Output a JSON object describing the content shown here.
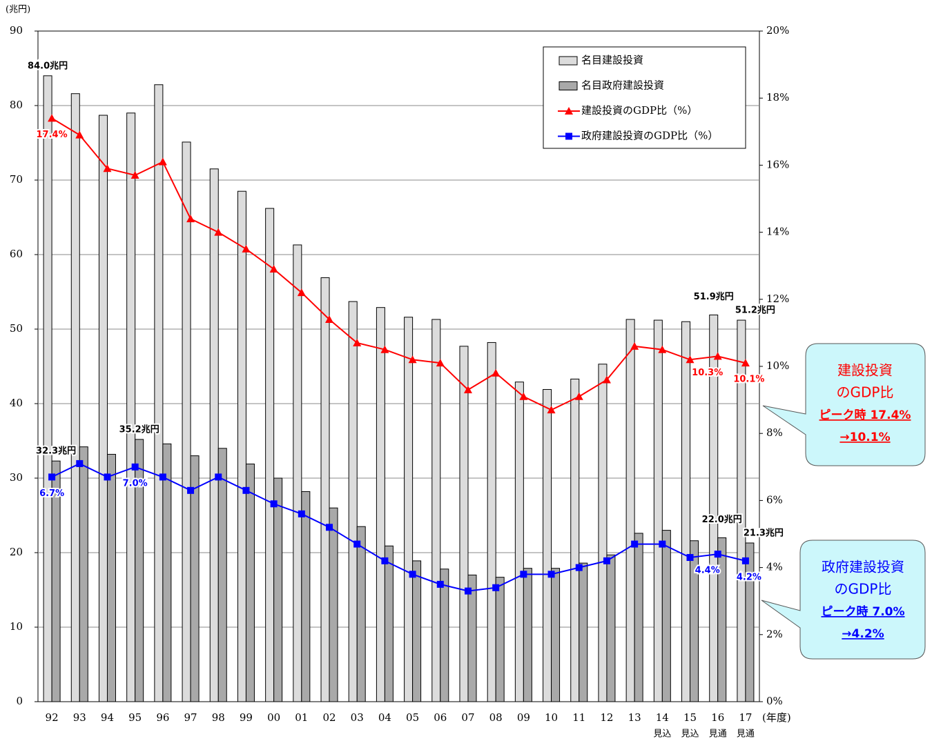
{
  "chart_data": {
    "type": "bar",
    "y_axis_label": "(兆円)",
    "x_axis_label": "(年度)",
    "categories": [
      "92",
      "93",
      "94",
      "95",
      "96",
      "97",
      "98",
      "99",
      "00",
      "01",
      "02",
      "03",
      "04",
      "05",
      "06",
      "07",
      "08",
      "09",
      "10",
      "11",
      "12",
      "13",
      "14",
      "15",
      "16",
      "17"
    ],
    "category_sublabels": [
      null,
      null,
      null,
      null,
      null,
      null,
      null,
      null,
      null,
      null,
      null,
      null,
      null,
      null,
      null,
      null,
      null,
      null,
      null,
      null,
      null,
      null,
      "見込",
      "見込",
      "見通",
      "見通"
    ],
    "ylim": [
      0,
      90
    ],
    "yticks": [
      0,
      10,
      20,
      30,
      40,
      50,
      60,
      70,
      80,
      90
    ],
    "y2lim": [
      0,
      20
    ],
    "y2ticks": [
      {
        "value": 0,
        "label": "0%"
      },
      {
        "value": 2,
        "label": "2%"
      },
      {
        "value": 4,
        "label": "4%"
      },
      {
        "value": 6,
        "label": "6%"
      },
      {
        "value": 8,
        "label": "8%"
      },
      {
        "value": 10,
        "label": "10%"
      },
      {
        "value": 12,
        "label": "12%"
      },
      {
        "value": 14,
        "label": "14%"
      },
      {
        "value": 16,
        "label": "16%"
      },
      {
        "value": 18,
        "label": "18%"
      },
      {
        "value": 20,
        "label": "20%"
      }
    ],
    "grid": true,
    "legend": "upper right",
    "series": [
      {
        "name": "名目建設投資",
        "type": "bar",
        "color": "#dcdcdc",
        "values": [
          84.0,
          81.6,
          78.7,
          79.0,
          82.8,
          75.1,
          71.5,
          68.5,
          66.2,
          61.3,
          56.9,
          53.7,
          52.9,
          51.6,
          51.3,
          47.7,
          48.2,
          42.9,
          41.9,
          43.3,
          45.3,
          51.3,
          51.2,
          51.0,
          51.9,
          51.2
        ],
        "value_labels": [
          "84.0兆円",
          null,
          null,
          null,
          null,
          null,
          null,
          null,
          null,
          null,
          null,
          null,
          null,
          null,
          null,
          null,
          null,
          null,
          null,
          null,
          null,
          null,
          null,
          null,
          "51.9兆円",
          "51.2兆円"
        ]
      },
      {
        "name": "名目政府建設投資",
        "type": "bar",
        "color": "#a9a9a9",
        "values": [
          32.3,
          34.2,
          33.2,
          35.2,
          34.6,
          33.0,
          34.0,
          31.9,
          30.0,
          28.2,
          26.0,
          23.5,
          20.9,
          18.9,
          17.8,
          17.0,
          16.7,
          17.9,
          17.9,
          18.6,
          19.7,
          22.6,
          23.0,
          21.6,
          22.0,
          21.3
        ],
        "value_labels": [
          "32.3兆円",
          null,
          null,
          "35.2兆円",
          null,
          null,
          null,
          null,
          null,
          null,
          null,
          null,
          null,
          null,
          null,
          null,
          null,
          null,
          null,
          null,
          null,
          null,
          null,
          null,
          "22.0兆円",
          "21.3兆円"
        ]
      },
      {
        "name": "建設投資のGDP比（%）",
        "type": "line",
        "axis": "y2",
        "color": "#ff0000",
        "marker": "triangle",
        "values": [
          17.4,
          16.9,
          15.9,
          15.7,
          16.1,
          14.4,
          14.0,
          13.5,
          12.9,
          12.2,
          11.4,
          10.7,
          10.5,
          10.2,
          10.1,
          9.3,
          9.8,
          9.1,
          8.7,
          9.1,
          9.6,
          10.6,
          10.5,
          10.2,
          10.3,
          10.1
        ],
        "value_labels": [
          "17.4%",
          null,
          null,
          null,
          null,
          null,
          null,
          null,
          null,
          null,
          null,
          null,
          null,
          null,
          null,
          null,
          null,
          null,
          null,
          null,
          null,
          null,
          null,
          null,
          "10.3%",
          "10.1%"
        ]
      },
      {
        "name": "政府建設投資のGDP比（%）",
        "type": "line",
        "axis": "y2",
        "color": "#0000ff",
        "marker": "square",
        "values": [
          6.7,
          7.1,
          6.7,
          7.0,
          6.7,
          6.3,
          6.7,
          6.3,
          5.9,
          5.6,
          5.2,
          4.7,
          4.2,
          3.8,
          3.5,
          3.3,
          3.4,
          3.8,
          3.8,
          4.0,
          4.2,
          4.7,
          4.7,
          4.3,
          4.4,
          4.2
        ],
        "value_labels": [
          "6.7%",
          null,
          null,
          "7.0%",
          null,
          null,
          null,
          null,
          null,
          null,
          null,
          null,
          null,
          null,
          null,
          null,
          null,
          null,
          null,
          null,
          null,
          null,
          null,
          null,
          "4.4%",
          "4.2%"
        ]
      }
    ],
    "annotations": [
      {
        "color": "#ff0000",
        "lines": [
          "建設投資",
          "のGDP比",
          "ピーク時 17.4%",
          "→10.1%"
        ]
      },
      {
        "color": "#0000ff",
        "lines": [
          "政府建設投資",
          "のGDP比",
          "ピーク時 7.0%",
          "→4.2%"
        ]
      }
    ]
  }
}
